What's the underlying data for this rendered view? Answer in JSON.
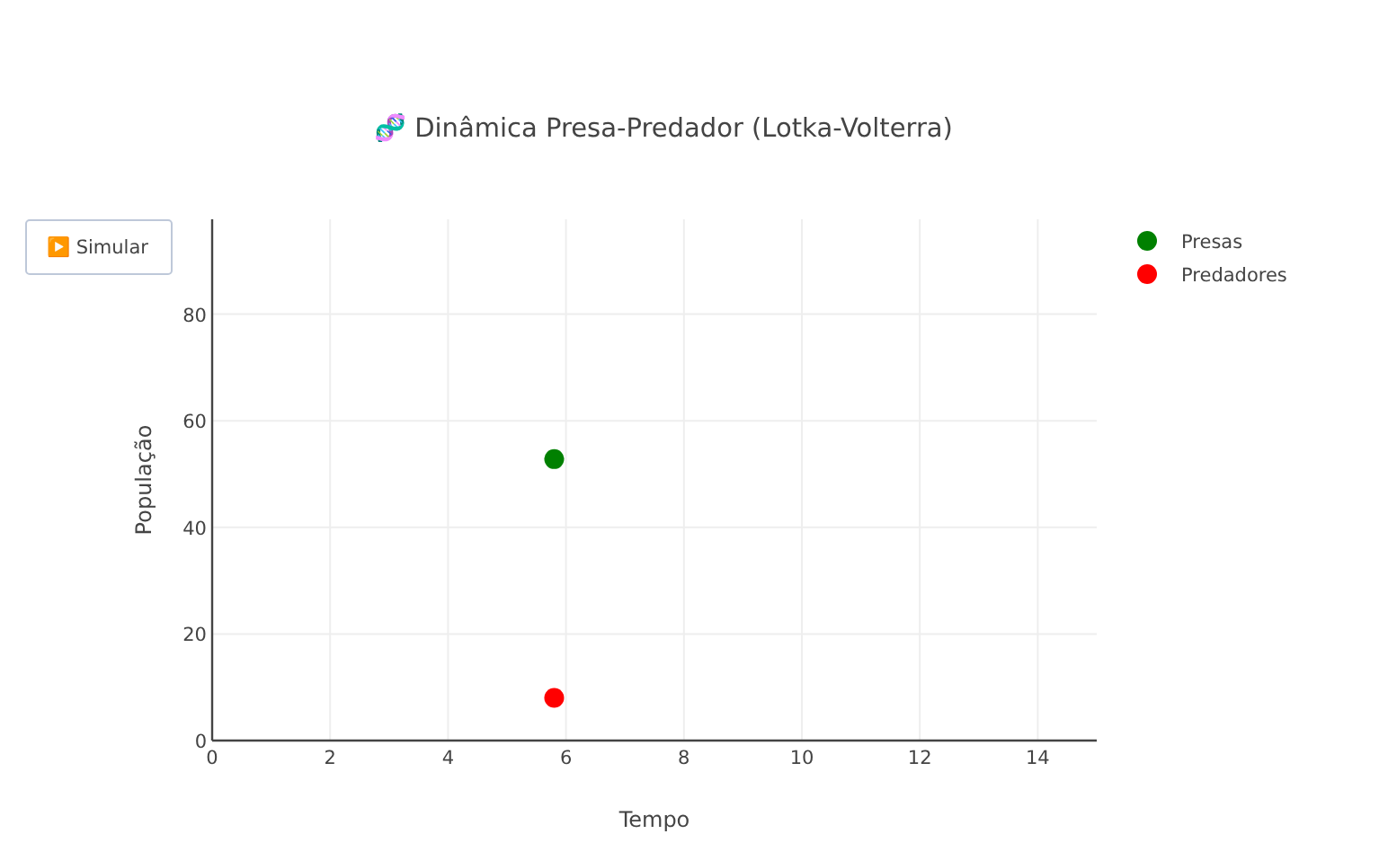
{
  "chart_data": {
    "type": "scatter",
    "title": "🧬 Dinâmica Presa-Predador (Lotka-Volterra)",
    "xlabel": "Tempo",
    "ylabel": "População",
    "annotations": [
      "▶️ Simular"
    ],
    "x": [
      5.8
    ],
    "series": [
      {
        "name": "Presas",
        "color": "#008000",
        "values": [
          52.8
        ]
      },
      {
        "name": "Predadores",
        "color": "#ff0000",
        "values": [
          8
        ]
      }
    ],
    "xlim": [
      0,
      15
    ],
    "ylim": [
      0,
      97.8
    ],
    "xticks": [
      0,
      2,
      4,
      6,
      8,
      10,
      12,
      14
    ],
    "yticks": [
      0,
      20,
      40,
      60,
      80
    ],
    "grid": true,
    "legend": "top right",
    "marker": "circle"
  }
}
